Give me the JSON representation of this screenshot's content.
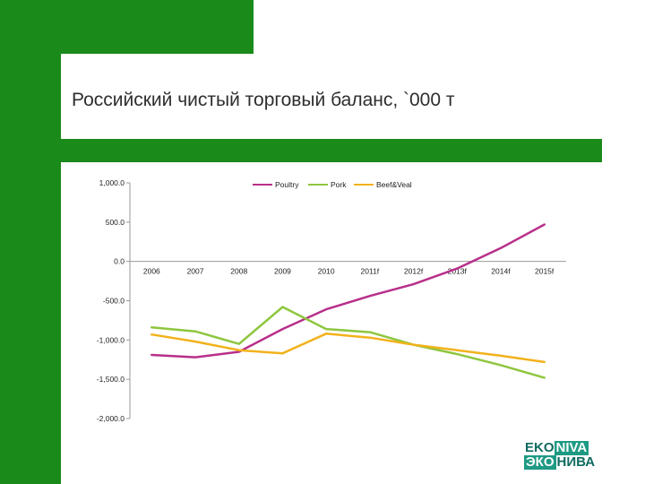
{
  "slide": {
    "title": "Российский чистый торговый баланс,  `000 т"
  },
  "logo": {
    "line1_a": "EKO",
    "line1_b": "NIVA",
    "line2_a": "ЭКО",
    "line2_b": "НИВА"
  },
  "colors": {
    "brand_green": "#1a8a1a",
    "poultry": "#b82f8a",
    "pork": "#8ec63f",
    "beef_veal": "#f2b21c"
  },
  "chart_data": {
    "type": "line",
    "categories": [
      "2006",
      "2007",
      "2008",
      "2009",
      "2010",
      "2011f",
      "2012f",
      "2013f",
      "2014f",
      "2015f"
    ],
    "series": [
      {
        "name": "Poultry",
        "values": [
          -1190,
          -1220,
          -1150,
          -860,
          -610,
          -440,
          -290,
          -90,
          170,
          470
        ]
      },
      {
        "name": "Pork",
        "values": [
          -840,
          -890,
          -1050,
          -580,
          -860,
          -900,
          -1060,
          -1180,
          -1320,
          -1480
        ]
      },
      {
        "name": "Beef&Veal",
        "values": [
          -930,
          -1020,
          -1130,
          -1170,
          -920,
          -970,
          -1060,
          -1130,
          -1200,
          -1280
        ]
      }
    ],
    "yticks": [
      "1,000.0",
      "500.0",
      "0.0",
      "-500.0",
      "-1,000.0",
      "-1,500.0",
      "-2,000.0"
    ],
    "ylim": [
      -2000,
      1000
    ],
    "legend_position": "top",
    "grid": false
  }
}
